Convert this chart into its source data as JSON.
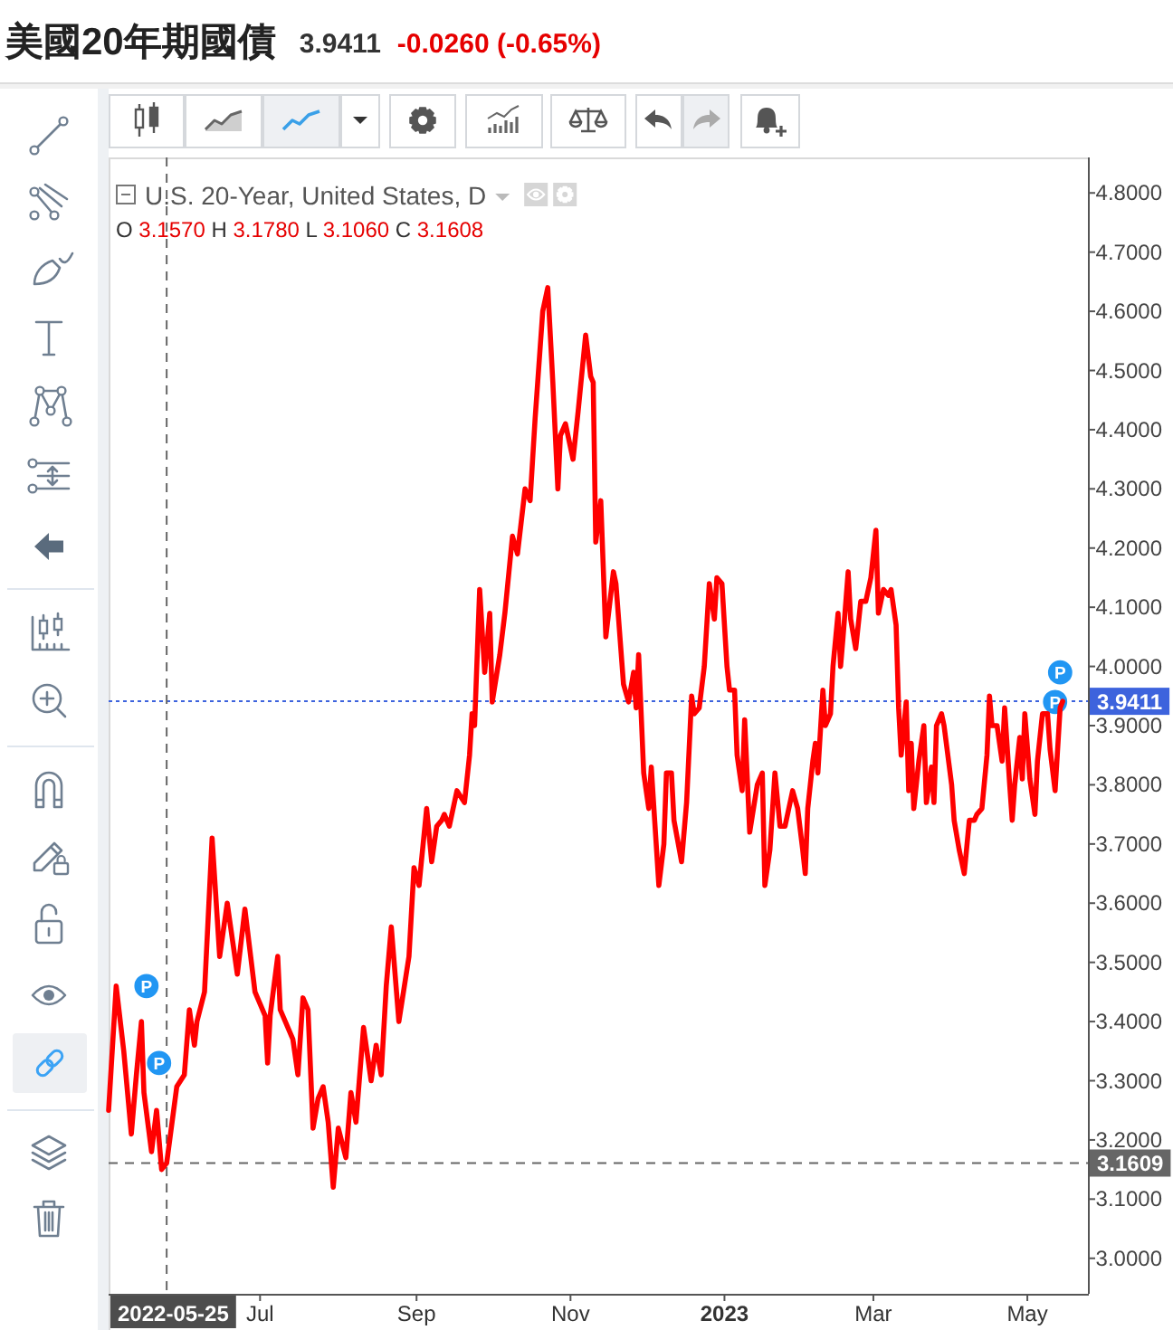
{
  "chart_data": {
    "type": "line",
    "title": "美國20年期國債",
    "subtitle": "U.S. 20-Year, United States, D",
    "annotations": [
      "3.9411",
      "-0.0260 (-0.65%)",
      "O 3.1570 H 3.1780 L 3.1060 C 3.1608",
      {
        "text": "P",
        "x": "2022-05-17",
        "y": 3.46
      },
      {
        "text": "P",
        "x": "2022-05-22",
        "y": 3.33
      },
      {
        "text": "P",
        "x": "2023-05-14",
        "y": 3.99
      },
      {
        "text": "P",
        "x": "2023-05-12",
        "y": 3.94
      }
    ],
    "color": "#ff0000",
    "x": [
      "2022-05-02",
      "2022-05-05",
      "2022-05-08",
      "2022-05-11",
      "2022-05-13",
      "2022-05-15",
      "2022-05-16",
      "2022-05-19",
      "2022-05-21",
      "2022-05-23",
      "2022-05-25",
      "2022-05-29",
      "2022-06-01",
      "2022-06-03",
      "2022-06-05",
      "2022-06-06",
      "2022-06-09",
      "2022-06-12",
      "2022-06-15",
      "2022-06-18",
      "2022-06-22",
      "2022-06-25",
      "2022-06-29",
      "2022-07-03",
      "2022-07-04",
      "2022-07-05",
      "2022-07-08",
      "2022-07-09",
      "2022-07-14",
      "2022-07-16",
      "2022-07-18",
      "2022-07-20",
      "2022-07-22",
      "2022-07-24",
      "2022-07-26",
      "2022-07-28",
      "2022-07-30",
      "2022-08-01",
      "2022-08-04",
      "2022-08-06",
      "2022-08-08",
      "2022-08-11",
      "2022-08-14",
      "2022-08-16",
      "2022-08-18",
      "2022-08-20",
      "2022-08-22",
      "2022-08-25",
      "2022-08-29",
      "2022-08-31",
      "2022-09-02",
      "2022-09-05",
      "2022-09-07",
      "2022-09-09",
      "2022-09-11",
      "2022-09-12",
      "2022-09-14",
      "2022-09-17",
      "2022-09-20",
      "2022-09-22",
      "2022-09-23",
      "2022-09-24",
      "2022-09-26",
      "2022-09-28",
      "2022-09-30",
      "2022-10-01",
      "2022-10-04",
      "2022-10-06",
      "2022-10-09",
      "2022-10-11",
      "2022-10-14",
      "2022-10-16",
      "2022-10-18",
      "2022-10-21",
      "2022-10-23",
      "2022-10-25",
      "2022-10-27",
      "2022-10-28",
      "2022-10-30",
      "2022-11-02",
      "2022-11-04",
      "2022-11-07",
      "2022-11-09",
      "2022-11-10",
      "2022-11-11",
      "2022-11-13",
      "2022-11-15",
      "2022-11-18",
      "2022-11-19",
      "2022-11-22",
      "2022-11-24",
      "2022-11-26",
      "2022-11-27",
      "2022-11-28",
      "2022-11-30",
      "2022-12-02",
      "2022-12-03",
      "2022-12-06",
      "2022-12-08",
      "2022-12-09",
      "2022-12-11",
      "2022-12-12",
      "2022-12-15",
      "2022-12-17",
      "2022-12-19",
      "2022-12-20",
      "2022-12-22",
      "2022-12-24",
      "2022-12-26",
      "2022-12-28",
      "2022-12-29",
      "2022-12-31",
      "2023-01-02",
      "2023-01-03",
      "2023-01-05",
      "2023-01-06",
      "2023-01-08",
      "2023-01-09",
      "2023-01-11",
      "2023-01-14",
      "2023-01-16",
      "2023-01-17",
      "2023-01-19",
      "2023-01-21",
      "2023-01-23",
      "2023-01-25",
      "2023-01-27",
      "2023-01-28",
      "2023-01-30",
      "2023-02-01",
      "2023-02-02",
      "2023-02-03",
      "2023-02-05",
      "2023-02-06",
      "2023-02-07",
      "2023-02-09",
      "2023-02-10",
      "2023-02-12",
      "2023-02-13",
      "2023-02-15",
      "2023-02-16",
      "2023-02-17",
      "2023-02-19",
      "2023-02-20",
      "2023-02-22",
      "2023-02-24",
      "2023-02-26",
      "2023-02-28",
      "2023-03-02",
      "2023-03-03",
      "2023-03-05",
      "2023-03-07",
      "2023-03-08",
      "2023-03-10",
      "2023-03-11",
      "2023-03-12",
      "2023-03-14",
      "2023-03-15",
      "2023-03-16",
      "2023-03-17",
      "2023-03-19",
      "2023-03-21",
      "2023-03-22",
      "2023-03-24",
      "2023-03-25",
      "2023-03-26",
      "2023-03-28",
      "2023-03-29",
      "2023-04-01",
      "2023-04-02",
      "2023-04-04",
      "2023-04-06",
      "2023-04-08",
      "2023-04-10",
      "2023-04-11",
      "2023-04-13",
      "2023-04-15",
      "2023-04-16",
      "2023-04-17",
      "2023-04-19",
      "2023-04-21",
      "2023-04-22",
      "2023-04-24",
      "2023-04-25",
      "2023-04-26",
      "2023-04-28",
      "2023-04-29",
      "2023-04-30",
      "2023-05-02",
      "2023-05-04",
      "2023-05-05",
      "2023-05-07",
      "2023-05-09",
      "2023-05-10",
      "2023-05-12",
      "2023-05-14",
      "2023-05-15"
    ],
    "values": [
      3.25,
      3.46,
      3.35,
      3.21,
      3.31,
      3.4,
      3.28,
      3.18,
      3.25,
      3.15,
      3.1608,
      3.29,
      3.31,
      3.42,
      3.36,
      3.4,
      3.45,
      3.71,
      3.51,
      3.6,
      3.48,
      3.59,
      3.45,
      3.41,
      3.33,
      3.41,
      3.51,
      3.42,
      3.37,
      3.31,
      3.44,
      3.42,
      3.22,
      3.27,
      3.29,
      3.23,
      3.12,
      3.22,
      3.17,
      3.28,
      3.23,
      3.39,
      3.3,
      3.36,
      3.31,
      3.46,
      3.56,
      3.4,
      3.51,
      3.66,
      3.63,
      3.76,
      3.67,
      3.73,
      3.74,
      3.75,
      3.73,
      3.79,
      3.77,
      3.85,
      3.92,
      3.9,
      4.13,
      3.99,
      4.09,
      3.94,
      4.02,
      4.09,
      4.22,
      4.19,
      4.3,
      4.28,
      4.42,
      4.6,
      4.64,
      4.48,
      4.3,
      4.39,
      4.41,
      4.35,
      4.43,
      4.56,
      4.49,
      4.48,
      4.21,
      4.28,
      4.05,
      4.16,
      4.14,
      3.97,
      3.94,
      3.99,
      3.93,
      4.02,
      3.82,
      3.76,
      3.83,
      3.63,
      3.7,
      3.82,
      3.82,
      3.74,
      3.67,
      3.77,
      3.95,
      3.92,
      3.93,
      4.0,
      4.14,
      4.08,
      4.15,
      4.14,
      4.0,
      3.96,
      3.96,
      3.85,
      3.79,
      3.91,
      3.72,
      3.8,
      3.82,
      3.63,
      3.69,
      3.82,
      3.73,
      3.73,
      3.77,
      3.79,
      3.76,
      3.69,
      3.65,
      3.76,
      3.84,
      3.87,
      3.82,
      3.96,
      3.9,
      3.92,
      4.0,
      4.09,
      4.0,
      4.05,
      4.16,
      4.08,
      4.03,
      4.11,
      4.11,
      4.15,
      4.23,
      4.09,
      4.13,
      4.12,
      4.13,
      4.07,
      3.93,
      3.85,
      3.94,
      3.79,
      3.87,
      3.76,
      3.84,
      3.9,
      3.77,
      3.83,
      3.77,
      3.9,
      3.92,
      3.9,
      3.8,
      3.74,
      3.69,
      3.65,
      3.74,
      3.74,
      3.75,
      3.76,
      3.85,
      3.95,
      3.9,
      3.9,
      3.84,
      3.93,
      3.8,
      3.74,
      3.8,
      3.88,
      3.81,
      3.92,
      3.81,
      3.75,
      3.84,
      3.92,
      3.92,
      3.86,
      3.79,
      3.93,
      3.9411
    ],
    "xlim": [
      "2022-05-02",
      "2023-05-25"
    ],
    "xticks": [
      {
        "value": "2022-07-01",
        "label": "Jul"
      },
      {
        "value": "2022-09-01",
        "label": "Sep"
      },
      {
        "value": "2022-11-01",
        "label": "Nov"
      },
      {
        "value": "2023-01-01",
        "label": "2023"
      },
      {
        "value": "2023-03-01",
        "label": "Mar"
      },
      {
        "value": "2023-05-01",
        "label": "May"
      }
    ],
    "ylim": [
      2.94,
      4.86
    ],
    "yticks": [
      {
        "value": 3.0,
        "label": "3.0000"
      },
      {
        "value": 3.1,
        "label": "3.1000"
      },
      {
        "value": 3.2,
        "label": "3.2000"
      },
      {
        "value": 3.3,
        "label": "3.3000"
      },
      {
        "value": 3.4,
        "label": "3.4000"
      },
      {
        "value": 3.5,
        "label": "3.5000"
      },
      {
        "value": 3.6,
        "label": "3.6000"
      },
      {
        "value": 3.7,
        "label": "3.7000"
      },
      {
        "value": 3.8,
        "label": "3.8000"
      },
      {
        "value": 3.9,
        "label": "3.9000"
      },
      {
        "value": 4.0,
        "label": "4.0000"
      },
      {
        "value": 4.1,
        "label": "4.1000"
      },
      {
        "value": 4.2,
        "label": "4.2000"
      },
      {
        "value": 4.3,
        "label": "4.3000"
      },
      {
        "value": 4.4,
        "label": "4.4000"
      },
      {
        "value": 4.5,
        "label": "4.5000"
      },
      {
        "value": 4.6,
        "label": "4.6000"
      },
      {
        "value": 4.7,
        "label": "4.7000"
      },
      {
        "value": 4.8,
        "label": "4.8000"
      }
    ],
    "ref_lines": [
      {
        "axis": "y",
        "value": 3.9411,
        "label": "3.9411",
        "color": "#3d63dd",
        "line_style": "dotted"
      },
      {
        "axis": "y",
        "value": 3.1609,
        "label": "3.1609",
        "color": "#666666",
        "line_style": "dashed"
      },
      {
        "axis": "x",
        "value": "2022-05-25",
        "label": "2022-05-25",
        "color": "#666666",
        "line_style": "dashed"
      }
    ]
  }
}
